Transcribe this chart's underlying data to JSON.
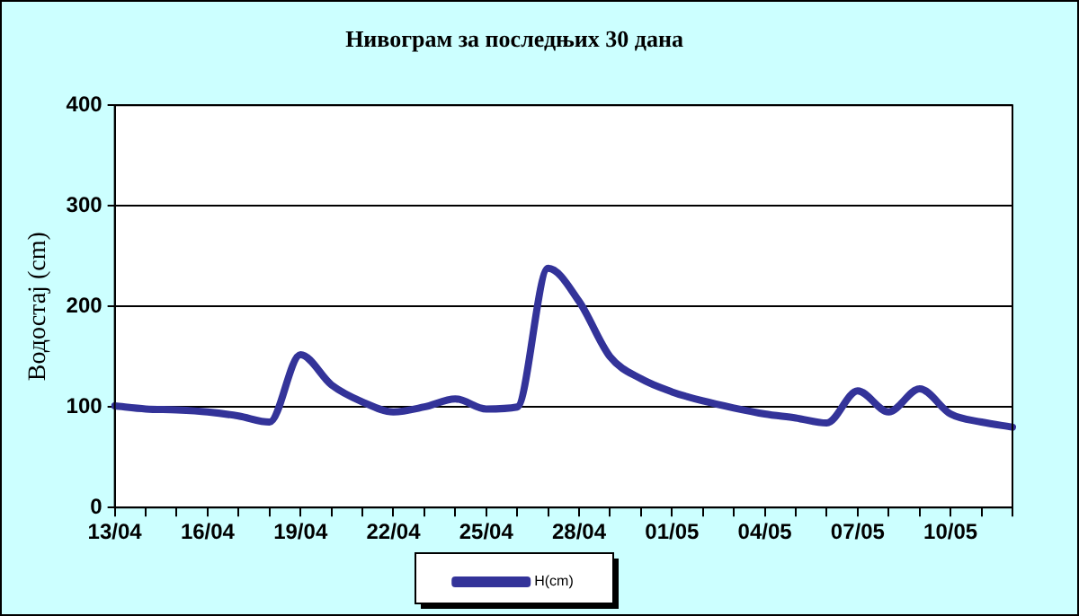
{
  "chart_data": {
    "type": "line",
    "title": "Нивограм за последњих 30 дана",
    "ylabel": "Водостај (cm)",
    "categories": [
      "13/04",
      null,
      null,
      "16/04",
      null,
      null,
      "19/04",
      null,
      null,
      "22/04",
      null,
      null,
      "25/04",
      null,
      null,
      "28/04",
      null,
      null,
      "01/05",
      null,
      null,
      "04/05",
      null,
      null,
      "07/05",
      null,
      null,
      "10/05",
      null,
      null
    ],
    "series": [
      {
        "name": "H(cm)",
        "color": "#333399",
        "values": [
          101,
          98,
          97,
          95,
          91,
          85,
          152,
          122,
          105,
          95,
          100,
          108,
          98,
          100,
          238,
          205,
          150,
          128,
          115,
          106,
          99,
          93,
          89,
          84,
          116,
          95,
          118,
          93,
          85,
          80
        ]
      }
    ],
    "ylim": [
      0,
      400
    ],
    "yticks": [
      0,
      100,
      200,
      300,
      400
    ],
    "grid": "y",
    "legend": "bottom",
    "marker": "none",
    "line_style": "solid"
  }
}
